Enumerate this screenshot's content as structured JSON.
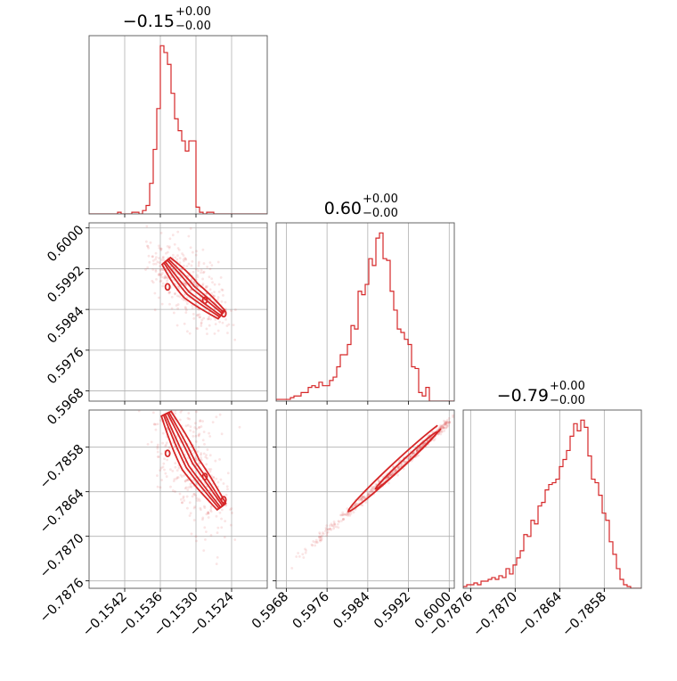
{
  "chart_data": {
    "type": "corner",
    "color": "#d62728",
    "grid": true,
    "parameters": [
      {
        "range": [
          -0.1548,
          -0.1518
        ],
        "ticks": [
          -0.1542,
          -0.1536,
          -0.153,
          -0.1524
        ],
        "tick_labels": [
          "−0.1542",
          "−0.1536",
          "−0.1530",
          "−0.1524"
        ],
        "title_main": "−0.15",
        "title_plus": "+0.00",
        "title_minus": "−0.00"
      },
      {
        "range": [
          0.5966,
          0.6001
        ],
        "ticks": [
          0.5968,
          0.5976,
          0.5984,
          0.5992,
          0.6
        ],
        "tick_labels": [
          "0.5968",
          "0.5976",
          "0.5984",
          "0.5992",
          "0.6000"
        ],
        "title_main": "0.60",
        "title_plus": "+0.00",
        "title_minus": "−0.00"
      },
      {
        "range": [
          -0.7877,
          -0.7853
        ],
        "ticks": [
          -0.7876,
          -0.787,
          -0.7864,
          -0.7858
        ],
        "tick_labels": [
          "−0.7876",
          "−0.7870",
          "−0.7864",
          "−0.7858"
        ],
        "title_main": "−0.79",
        "title_plus": "+0.00",
        "title_minus": "−0.00"
      }
    ],
    "histograms": [
      {
        "bins": [
          -0.1548,
          -0.15474,
          -0.15468,
          -0.15462,
          -0.15456,
          -0.1545,
          -0.15444,
          -0.15438,
          -0.15432,
          -0.15426,
          -0.1542,
          -0.15414,
          -0.15408,
          -0.15402,
          -0.15396,
          -0.1539,
          -0.15384,
          -0.15378,
          -0.15372,
          -0.15366,
          -0.1536,
          -0.15354,
          -0.15348,
          -0.15342,
          -0.15336,
          -0.1533,
          -0.15324,
          -0.15318,
          -0.15312,
          -0.15306,
          -0.153,
          -0.15294,
          -0.15288,
          -0.15282,
          -0.15276,
          -0.1527,
          -0.15264,
          -0.15258,
          -0.15252,
          -0.15246,
          -0.1524,
          -0.15234,
          -0.15228,
          -0.15222,
          -0.15216,
          -0.1521,
          -0.15204,
          -0.15198,
          -0.15192,
          -0.15186,
          -0.1518
        ],
        "counts": [
          0,
          0,
          0,
          0,
          0,
          0,
          0,
          0,
          1,
          0,
          0,
          0,
          1,
          1,
          0,
          2,
          5,
          18,
          38,
          62,
          99,
          95,
          88,
          71,
          56,
          49,
          43,
          37,
          43,
          43,
          4,
          1,
          0,
          1,
          1,
          0,
          0,
          0,
          0,
          0,
          0,
          0,
          0,
          0,
          0,
          0,
          0,
          0,
          0,
          0
        ]
      },
      {
        "bins": [
          0.5966,
          0.59667,
          0.59674,
          0.59681,
          0.59688,
          0.59695,
          0.59702,
          0.59709,
          0.59716,
          0.59723,
          0.5973,
          0.59737,
          0.59744,
          0.59751,
          0.59758,
          0.59765,
          0.59772,
          0.59779,
          0.59786,
          0.59793,
          0.598,
          0.59807,
          0.59814,
          0.59821,
          0.59828,
          0.59835,
          0.59842,
          0.59849,
          0.59856,
          0.59863,
          0.5987,
          0.59877,
          0.59884,
          0.59891,
          0.59898,
          0.59905,
          0.59912,
          0.59919,
          0.59926,
          0.59933,
          0.5994,
          0.59947,
          0.59954,
          0.59961,
          0.59968,
          0.59975,
          0.59982,
          0.59989,
          0.59996,
          0.60003,
          0.6001
        ],
        "counts": [
          1,
          1,
          1,
          1,
          2,
          3,
          3,
          5,
          5,
          8,
          9,
          8,
          11,
          9,
          9,
          12,
          14,
          20,
          27,
          27,
          33,
          44,
          42,
          64,
          62,
          68,
          83,
          79,
          95,
          98,
          83,
          82,
          64,
          53,
          42,
          40,
          36,
          33,
          20,
          19,
          5,
          3,
          8,
          0,
          0,
          0,
          0,
          0,
          0,
          0
        ]
      },
      {
        "bins": [
          -0.7877,
          -0.787652,
          -0.787604,
          -0.787556,
          -0.787508,
          -0.78746,
          -0.787412,
          -0.787364,
          -0.787316,
          -0.787268,
          -0.78722,
          -0.787172,
          -0.787124,
          -0.787076,
          -0.787028,
          -0.78698,
          -0.786932,
          -0.786884,
          -0.786836,
          -0.786788,
          -0.78674,
          -0.786692,
          -0.786644,
          -0.786596,
          -0.786548,
          -0.7865,
          -0.786452,
          -0.786404,
          -0.786356,
          -0.786308,
          -0.78626,
          -0.786212,
          -0.786164,
          -0.786116,
          -0.786068,
          -0.78602,
          -0.785972,
          -0.785924,
          -0.785876,
          -0.785828,
          -0.78578,
          -0.785732,
          -0.785684,
          -0.785636,
          -0.785588,
          -0.78554,
          -0.785492,
          -0.785444,
          -0.785396,
          -0.785348,
          -0.7853
        ],
        "counts": [
          1,
          2,
          2,
          3,
          2,
          4,
          4,
          5,
          6,
          5,
          7,
          6,
          11,
          8,
          13,
          17,
          21,
          30,
          29,
          38,
          36,
          46,
          48,
          55,
          58,
          59,
          61,
          68,
          72,
          77,
          85,
          92,
          88,
          94,
          90,
          74,
          61,
          59,
          52,
          42,
          38,
          26,
          19,
          11,
          5,
          2,
          1,
          0,
          0,
          0
        ]
      }
    ],
    "pair_panels": [
      {
        "x_param": 0,
        "y_param": 1
      },
      {
        "x_param": 0,
        "y_param": 2
      },
      {
        "x_param": 1,
        "y_param": 2
      }
    ]
  }
}
